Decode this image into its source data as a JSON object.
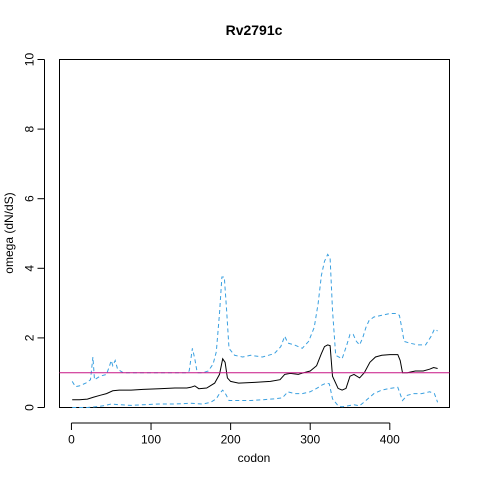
{
  "chart_data": {
    "type": "line",
    "title": "Rv2791c",
    "xlabel": "codon",
    "ylabel": "omega (dN/dS)",
    "xlim": [
      -15,
      475
    ],
    "ylim": [
      0,
      10
    ],
    "x_ticks": [
      0,
      100,
      200,
      300,
      400
    ],
    "y_ticks": [
      0,
      2,
      4,
      6,
      8,
      10
    ],
    "grid": false,
    "reference_line": {
      "y": 1,
      "color": "#c71585"
    },
    "colors": {
      "estimate": "#000000",
      "ci": "#3aa0e0",
      "reference": "#c71585"
    },
    "series": [
      {
        "role": "estimate",
        "points": [
          [
            1,
            0.22
          ],
          [
            10,
            0.22
          ],
          [
            20,
            0.24
          ],
          [
            28,
            0.3
          ],
          [
            36,
            0.35
          ],
          [
            44,
            0.4
          ],
          [
            52,
            0.48
          ],
          [
            60,
            0.5
          ],
          [
            75,
            0.5
          ],
          [
            90,
            0.52
          ],
          [
            110,
            0.54
          ],
          [
            130,
            0.56
          ],
          [
            145,
            0.56
          ],
          [
            150,
            0.58
          ],
          [
            155,
            0.62
          ],
          [
            160,
            0.54
          ],
          [
            170,
            0.56
          ],
          [
            180,
            0.7
          ],
          [
            186,
            0.95
          ],
          [
            190,
            1.4
          ],
          [
            193,
            1.3
          ],
          [
            196,
            0.85
          ],
          [
            200,
            0.75
          ],
          [
            210,
            0.7
          ],
          [
            230,
            0.72
          ],
          [
            250,
            0.75
          ],
          [
            262,
            0.8
          ],
          [
            268,
            0.95
          ],
          [
            275,
            0.98
          ],
          [
            285,
            0.95
          ],
          [
            292,
            1.0
          ],
          [
            300,
            1.05
          ],
          [
            308,
            1.2
          ],
          [
            314,
            1.55
          ],
          [
            318,
            1.75
          ],
          [
            322,
            1.8
          ],
          [
            325,
            1.78
          ],
          [
            328,
            0.9
          ],
          [
            335,
            0.55
          ],
          [
            340,
            0.5
          ],
          [
            345,
            0.55
          ],
          [
            350,
            0.9
          ],
          [
            355,
            0.95
          ],
          [
            362,
            0.85
          ],
          [
            368,
            1.0
          ],
          [
            375,
            1.3
          ],
          [
            382,
            1.45
          ],
          [
            390,
            1.5
          ],
          [
            400,
            1.52
          ],
          [
            410,
            1.52
          ],
          [
            413,
            1.35
          ],
          [
            416,
            1.0
          ],
          [
            422,
            1.0
          ],
          [
            432,
            1.05
          ],
          [
            442,
            1.05
          ],
          [
            450,
            1.1
          ],
          [
            455,
            1.15
          ],
          [
            460,
            1.12
          ]
        ]
      },
      {
        "role": "ci-upper",
        "points": [
          [
            1,
            0.75
          ],
          [
            5,
            0.6
          ],
          [
            10,
            0.62
          ],
          [
            18,
            0.7
          ],
          [
            24,
            0.8
          ],
          [
            27,
            1.45
          ],
          [
            29,
            0.8
          ],
          [
            36,
            0.9
          ],
          [
            44,
            0.95
          ],
          [
            48,
            1.2
          ],
          [
            50,
            1.35
          ],
          [
            52,
            1.2
          ],
          [
            55,
            1.35
          ],
          [
            58,
            1.1
          ],
          [
            65,
            1.0
          ],
          [
            75,
            1.0
          ],
          [
            90,
            1.0
          ],
          [
            110,
            1.0
          ],
          [
            130,
            1.0
          ],
          [
            145,
            1.0
          ],
          [
            148,
            1.05
          ],
          [
            152,
            1.7
          ],
          [
            155,
            1.4
          ],
          [
            158,
            1.0
          ],
          [
            165,
            1.0
          ],
          [
            172,
            1.05
          ],
          [
            178,
            1.25
          ],
          [
            182,
            1.6
          ],
          [
            186,
            2.7
          ],
          [
            189,
            3.75
          ],
          [
            192,
            3.75
          ],
          [
            195,
            2.8
          ],
          [
            198,
            1.7
          ],
          [
            205,
            1.5
          ],
          [
            215,
            1.45
          ],
          [
            225,
            1.5
          ],
          [
            240,
            1.45
          ],
          [
            255,
            1.55
          ],
          [
            263,
            1.75
          ],
          [
            268,
            2.05
          ],
          [
            272,
            1.85
          ],
          [
            280,
            1.8
          ],
          [
            290,
            1.7
          ],
          [
            298,
            1.9
          ],
          [
            305,
            2.3
          ],
          [
            310,
            3.0
          ],
          [
            314,
            3.8
          ],
          [
            318,
            4.2
          ],
          [
            322,
            4.4
          ],
          [
            325,
            4.3
          ],
          [
            328,
            2.8
          ],
          [
            332,
            1.5
          ],
          [
            340,
            1.4
          ],
          [
            346,
            1.8
          ],
          [
            350,
            2.1
          ],
          [
            354,
            2.1
          ],
          [
            358,
            1.9
          ],
          [
            362,
            1.8
          ],
          [
            366,
            2.0
          ],
          [
            370,
            2.3
          ],
          [
            374,
            2.5
          ],
          [
            380,
            2.6
          ],
          [
            390,
            2.65
          ],
          [
            400,
            2.7
          ],
          [
            408,
            2.7
          ],
          [
            412,
            2.65
          ],
          [
            415,
            2.3
          ],
          [
            418,
            1.9
          ],
          [
            425,
            1.85
          ],
          [
            435,
            1.8
          ],
          [
            445,
            1.8
          ],
          [
            452,
            2.05
          ],
          [
            456,
            2.25
          ],
          [
            460,
            2.2
          ]
        ]
      },
      {
        "role": "ci-lower",
        "points": [
          [
            1,
            0.0
          ],
          [
            10,
            0.0
          ],
          [
            20,
            0.0
          ],
          [
            30,
            0.02
          ],
          [
            40,
            0.05
          ],
          [
            50,
            0.1
          ],
          [
            60,
            0.08
          ],
          [
            75,
            0.06
          ],
          [
            90,
            0.08
          ],
          [
            110,
            0.1
          ],
          [
            130,
            0.1
          ],
          [
            150,
            0.12
          ],
          [
            165,
            0.1
          ],
          [
            175,
            0.15
          ],
          [
            182,
            0.25
          ],
          [
            186,
            0.4
          ],
          [
            190,
            0.5
          ],
          [
            194,
            0.38
          ],
          [
            198,
            0.2
          ],
          [
            210,
            0.2
          ],
          [
            225,
            0.2
          ],
          [
            240,
            0.22
          ],
          [
            255,
            0.25
          ],
          [
            265,
            0.28
          ],
          [
            272,
            0.45
          ],
          [
            280,
            0.4
          ],
          [
            290,
            0.4
          ],
          [
            300,
            0.45
          ],
          [
            308,
            0.55
          ],
          [
            315,
            0.65
          ],
          [
            320,
            0.7
          ],
          [
            324,
            0.68
          ],
          [
            328,
            0.25
          ],
          [
            335,
            0.05
          ],
          [
            340,
            0.02
          ],
          [
            348,
            0.05
          ],
          [
            355,
            0.08
          ],
          [
            362,
            0.05
          ],
          [
            370,
            0.2
          ],
          [
            380,
            0.4
          ],
          [
            390,
            0.5
          ],
          [
            400,
            0.55
          ],
          [
            410,
            0.58
          ],
          [
            416,
            0.2
          ],
          [
            422,
            0.35
          ],
          [
            430,
            0.4
          ],
          [
            440,
            0.4
          ],
          [
            450,
            0.45
          ],
          [
            456,
            0.4
          ],
          [
            460,
            0.15
          ]
        ]
      }
    ]
  }
}
